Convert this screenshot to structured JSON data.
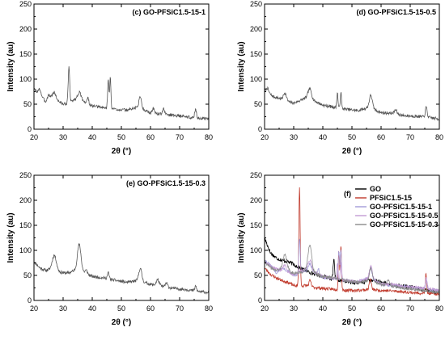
{
  "chart_data": [
    {
      "id": "c",
      "type": "line",
      "title": "(c) GO-PFSiC1.5-15-1",
      "xlabel": "2θ (°)",
      "ylabel": "Intensity (au)",
      "xlim": [
        20,
        80
      ],
      "ylim": [
        0,
        250
      ],
      "xticks": [
        "20",
        "30",
        "40",
        "50",
        "60",
        "70",
        "80"
      ],
      "yticks": [
        "0",
        "50",
        "100",
        "150",
        "200",
        "250"
      ],
      "grid": false,
      "series": [
        {
          "color": "#555555",
          "base": [
            [
              20,
              80
            ],
            [
              22,
              70
            ],
            [
              24,
              55
            ],
            [
              26,
              65
            ],
            [
              28,
              58
            ],
            [
              30,
              50
            ],
            [
              32,
              52
            ],
            [
              34,
              60
            ],
            [
              36,
              62
            ],
            [
              38,
              52
            ],
            [
              40,
              46
            ],
            [
              44,
              43
            ],
            [
              48,
              40
            ],
            [
              52,
              38
            ],
            [
              56,
              45
            ],
            [
              60,
              32
            ],
            [
              64,
              30
            ],
            [
              68,
              28
            ],
            [
              72,
              25
            ],
            [
              76,
              22
            ],
            [
              80,
              20
            ]
          ],
          "peaks": [
            [
              22,
              10,
              0.4
            ],
            [
              25,
              8,
              0.4
            ],
            [
              27,
              12,
              0.5
            ],
            [
              32,
              73,
              0.25
            ],
            [
              35.5,
              12,
              0.5
            ],
            [
              38.5,
              12,
              0.3
            ],
            [
              45.5,
              57,
              0.22
            ],
            [
              46.2,
              62,
              0.2
            ],
            [
              56.5,
              22,
              0.4
            ],
            [
              61,
              10,
              0.4
            ],
            [
              64.5,
              10,
              0.4
            ],
            [
              75.5,
              18,
              0.3
            ]
          ],
          "noise": 3,
          "seed": 3
        }
      ]
    },
    {
      "id": "d",
      "type": "line",
      "title": "(d) GO-PFSiC1.5-15-0.5",
      "xlabel": "2θ (°)",
      "ylabel": "Intensity (au)",
      "xlim": [
        20,
        80
      ],
      "ylim": [
        0,
        250
      ],
      "xticks": [
        "20",
        "30",
        "40",
        "50",
        "60",
        "70",
        "80"
      ],
      "yticks": [
        "0",
        "50",
        "100",
        "150",
        "200",
        "250"
      ],
      "grid": false,
      "series": [
        {
          "color": "#555555",
          "base": [
            [
              20,
              78
            ],
            [
              23,
              65
            ],
            [
              26,
              60
            ],
            [
              28,
              55
            ],
            [
              30,
              52
            ],
            [
              34,
              62
            ],
            [
              36,
              60
            ],
            [
              40,
              48
            ],
            [
              44,
              44
            ],
            [
              48,
              40
            ],
            [
              52,
              37
            ],
            [
              56,
              44
            ],
            [
              60,
              33
            ],
            [
              64,
              32
            ],
            [
              68,
              27
            ],
            [
              72,
              26
            ],
            [
              76,
              24
            ],
            [
              80,
              20
            ]
          ],
          "peaks": [
            [
              21,
              8,
              0.4
            ],
            [
              27,
              15,
              0.5
            ],
            [
              35.5,
              20,
              0.6
            ],
            [
              45,
              30,
              0.2
            ],
            [
              46.2,
              32,
              0.2
            ],
            [
              56.5,
              25,
              0.5
            ],
            [
              65,
              8,
              0.4
            ],
            [
              75.5,
              20,
              0.3
            ]
          ],
          "noise": 3,
          "seed": 7
        }
      ]
    },
    {
      "id": "e",
      "type": "line",
      "title": "(e) GO-PFSiC1.5-15-0.3",
      "xlabel": "2θ (°)",
      "ylabel": "Intensity (au)",
      "xlim": [
        20,
        80
      ],
      "ylim": [
        0,
        250
      ],
      "xticks": [
        "20",
        "30",
        "40",
        "50",
        "60",
        "70",
        "80"
      ],
      "yticks": [
        "0",
        "50",
        "100",
        "150",
        "200",
        "250"
      ],
      "grid": false,
      "series": [
        {
          "color": "#555555",
          "base": [
            [
              20,
              78
            ],
            [
              22,
              65
            ],
            [
              24,
              60
            ],
            [
              26,
              62
            ],
            [
              28,
              58
            ],
            [
              30,
              55
            ],
            [
              32,
              55
            ],
            [
              34,
              60
            ],
            [
              36,
              62
            ],
            [
              38,
              52
            ],
            [
              40,
              48
            ],
            [
              44,
              45
            ],
            [
              48,
              40
            ],
            [
              52,
              36
            ],
            [
              56,
              40
            ],
            [
              60,
              32
            ],
            [
              64,
              28
            ],
            [
              68,
              24
            ],
            [
              72,
              22
            ],
            [
              76,
              18
            ],
            [
              80,
              16
            ]
          ],
          "peaks": [
            [
              27,
              30,
              0.7
            ],
            [
              35.5,
              50,
              0.6
            ],
            [
              38,
              8,
              0.4
            ],
            [
              45.5,
              12,
              0.3
            ],
            [
              56.5,
              25,
              0.5
            ],
            [
              62.5,
              12,
              0.5
            ],
            [
              65.5,
              8,
              0.4
            ],
            [
              75.5,
              10,
              0.3
            ]
          ],
          "noise": 3,
          "seed": 11
        }
      ]
    },
    {
      "id": "f",
      "type": "line",
      "title": "(f)",
      "xlabel": "2θ (°)",
      "ylabel": "Intensity (au)",
      "xlim": [
        20,
        80
      ],
      "ylim": [
        0,
        250
      ],
      "xticks": [
        "20",
        "30",
        "40",
        "50",
        "60",
        "70",
        "80"
      ],
      "yticks": [
        "0",
        "50",
        "100",
        "150",
        "200",
        "250"
      ],
      "grid": false,
      "legend_position": "top-right",
      "series": [
        {
          "name": "GO",
          "color": "#000000",
          "base": [
            [
              20,
              125
            ],
            [
              22,
              95
            ],
            [
              24,
              85
            ],
            [
              26,
              80
            ],
            [
              28,
              78
            ],
            [
              30,
              72
            ],
            [
              32,
              65
            ],
            [
              34,
              60
            ],
            [
              36,
              55
            ],
            [
              40,
              48
            ],
            [
              44,
              42
            ],
            [
              48,
              38
            ],
            [
              52,
              35
            ],
            [
              56,
              38
            ],
            [
              58,
              40
            ],
            [
              60,
              36
            ],
            [
              64,
              30
            ],
            [
              68,
              28
            ],
            [
              72,
              25
            ],
            [
              76,
              20
            ],
            [
              80,
              15
            ]
          ],
          "peaks": [
            [
              43.8,
              38,
              0.25
            ],
            [
              55.5,
              6,
              0.4
            ]
          ],
          "noise": 4,
          "seed": 17
        },
        {
          "name": "PFSiC1.5-15",
          "color": "#c0392b",
          "base": [
            [
              20,
              65
            ],
            [
              22,
              52
            ],
            [
              24,
              45
            ],
            [
              26,
              40
            ],
            [
              28,
              36
            ],
            [
              30,
              30
            ],
            [
              32,
              28
            ],
            [
              34,
              30
            ],
            [
              36,
              27
            ],
            [
              40,
              24
            ],
            [
              44,
              22
            ],
            [
              48,
              20
            ],
            [
              52,
              20
            ],
            [
              56,
              22
            ],
            [
              60,
              20
            ],
            [
              64,
              19
            ],
            [
              68,
              17
            ],
            [
              72,
              15
            ],
            [
              76,
              14
            ],
            [
              80,
              12
            ]
          ],
          "peaks": [
            [
              32,
              200,
              0.22
            ],
            [
              35.6,
              12,
              0.35
            ],
            [
              45.5,
              80,
              0.2
            ],
            [
              46.2,
              90,
              0.2
            ],
            [
              56.3,
              20,
              0.35
            ],
            [
              75.4,
              38,
              0.22
            ]
          ],
          "noise": 3,
          "seed": 23
        },
        {
          "name": "GO-PFSiC1.5-15-1",
          "color": "#a29bd8",
          "base": [
            [
              20,
              80
            ],
            [
              22,
              70
            ],
            [
              24,
              55
            ],
            [
              26,
              65
            ],
            [
              28,
              58
            ],
            [
              30,
              50
            ],
            [
              32,
              52
            ],
            [
              34,
              60
            ],
            [
              36,
              62
            ],
            [
              38,
              52
            ],
            [
              40,
              46
            ],
            [
              44,
              43
            ],
            [
              48,
              40
            ],
            [
              52,
              38
            ],
            [
              56,
              45
            ],
            [
              60,
              32
            ],
            [
              64,
              30
            ],
            [
              68,
              28
            ],
            [
              72,
              25
            ],
            [
              76,
              22
            ],
            [
              80,
              20
            ]
          ],
          "peaks": [
            [
              32,
              73,
              0.25
            ],
            [
              35.5,
              12,
              0.5
            ],
            [
              38.5,
              12,
              0.3
            ],
            [
              45.5,
              57,
              0.22
            ],
            [
              46.2,
              62,
              0.2
            ],
            [
              56.5,
              22,
              0.4
            ],
            [
              75.5,
              18,
              0.3
            ]
          ],
          "noise": 3,
          "seed": 31
        },
        {
          "name": "GO-PFSiC1.5-15-0.5",
          "color": "#c39bd3",
          "base": [
            [
              20,
              78
            ],
            [
              23,
              65
            ],
            [
              26,
              60
            ],
            [
              28,
              55
            ],
            [
              30,
              52
            ],
            [
              34,
              62
            ],
            [
              36,
              60
            ],
            [
              40,
              48
            ],
            [
              44,
              44
            ],
            [
              48,
              40
            ],
            [
              52,
              37
            ],
            [
              56,
              44
            ],
            [
              60,
              33
            ],
            [
              64,
              32
            ],
            [
              68,
              27
            ],
            [
              72,
              26
            ],
            [
              76,
              24
            ],
            [
              80,
              20
            ]
          ],
          "peaks": [
            [
              27,
              15,
              0.5
            ],
            [
              35.5,
              20,
              0.6
            ],
            [
              45,
              30,
              0.2
            ],
            [
              46.2,
              32,
              0.2
            ],
            [
              56.5,
              25,
              0.5
            ],
            [
              75.5,
              20,
              0.3
            ]
          ],
          "noise": 3,
          "seed": 37
        },
        {
          "name": "GO-PFSiC1.5-15-0.3",
          "color": "#8a8a8a",
          "base": [
            [
              20,
              78
            ],
            [
              22,
              65
            ],
            [
              24,
              60
            ],
            [
              26,
              62
            ],
            [
              28,
              58
            ],
            [
              30,
              55
            ],
            [
              32,
              55
            ],
            [
              34,
              60
            ],
            [
              36,
              62
            ],
            [
              38,
              52
            ],
            [
              40,
              48
            ],
            [
              44,
              45
            ],
            [
              48,
              40
            ],
            [
              52,
              36
            ],
            [
              56,
              40
            ],
            [
              60,
              32
            ],
            [
              64,
              28
            ],
            [
              68,
              24
            ],
            [
              72,
              22
            ],
            [
              76,
              18
            ],
            [
              80,
              16
            ]
          ],
          "peaks": [
            [
              27,
              30,
              0.7
            ],
            [
              35.5,
              50,
              0.6
            ],
            [
              56.5,
              25,
              0.5
            ],
            [
              62.5,
              12,
              0.5
            ]
          ],
          "noise": 3,
          "seed": 41
        }
      ]
    }
  ]
}
